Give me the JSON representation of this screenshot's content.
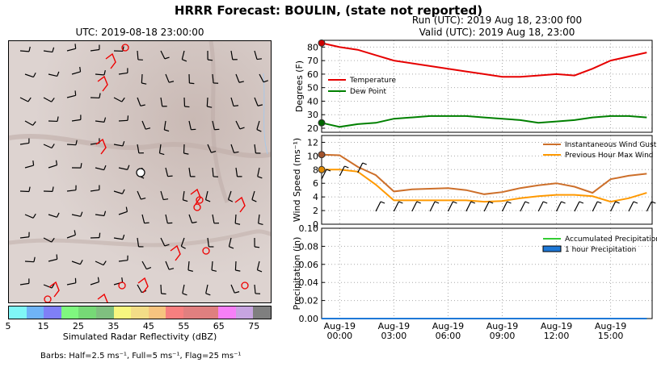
{
  "title": "HRRR Forecast: BOULIN, (state not reported)",
  "run_label": "Run (UTC): 2019 Aug 18, 23:00 f00",
  "valid_label": "Valid (UTC): 2019 Aug 18, 23:00",
  "map": {
    "title": "UTC: 2019-08-18 23:00:00",
    "colorbar_label": "Simulated Radar Reflectivity (dBZ)",
    "colorbar_ticks": [
      "5",
      "15",
      "25",
      "35",
      "45",
      "55",
      "65",
      "75"
    ],
    "colorbar_colors": [
      "#7ff7f7",
      "#6fb4f7",
      "#7f7ff7",
      "#7ff77f",
      "#76d976",
      "#7fbf7f",
      "#f7f77f",
      "#f3dd87",
      "#f7c47f",
      "#f77f7f",
      "#e07f7f",
      "#df7f7f",
      "#f77ff7",
      "#c7a4e0",
      "#7f7f7f"
    ],
    "barb_note": "Barbs: Half=2.5 ms⁻¹, Full=5 ms⁻¹, Flag=25 ms⁻¹"
  },
  "chart_data": [
    {
      "type": "line",
      "ylabel": "Degrees (F)",
      "ylim": [
        17,
        85
      ],
      "yticks": [
        20,
        30,
        40,
        50,
        60,
        70,
        80
      ],
      "x_hours": [
        0,
        1,
        2,
        3,
        4,
        5,
        6,
        7,
        8,
        9,
        10,
        11,
        12,
        13,
        14,
        15,
        16,
        17,
        18
      ],
      "series": [
        {
          "name": "Temperature",
          "color": "#e60000",
          "values": [
            83,
            80,
            78,
            74,
            70,
            68,
            66,
            64,
            62,
            60,
            58,
            58,
            59,
            60,
            59,
            64,
            70,
            73,
            76
          ]
        },
        {
          "name": "Dew Point",
          "color": "#008000",
          "values": [
            24,
            21,
            23,
            24,
            27,
            28,
            29,
            29,
            29,
            28,
            27,
            26,
            24,
            25,
            26,
            28,
            29,
            29,
            28
          ]
        }
      ],
      "legend": "center-left"
    },
    {
      "type": "line",
      "ylabel": "Wind Speed (ms⁻¹)",
      "ylim": [
        0,
        13
      ],
      "yticks": [
        0,
        2,
        4,
        6,
        8,
        10,
        12
      ],
      "x_hours": [
        0,
        1,
        2,
        3,
        4,
        5,
        6,
        7,
        8,
        9,
        10,
        11,
        12,
        13,
        14,
        15,
        16,
        17,
        18
      ],
      "series": [
        {
          "name": "Instantaneous Wind Gust",
          "color": "#cd6f2a",
          "values": [
            10.2,
            10.1,
            8.4,
            7.2,
            4.8,
            5.1,
            5.2,
            5.3,
            5.0,
            4.4,
            4.7,
            5.3,
            5.7,
            6.0,
            5.5,
            4.6,
            6.6,
            7.1,
            7.4
          ]
        },
        {
          "name": "Previous Hour Max Wind",
          "color": "#ff9900",
          "values": [
            8.0,
            8.0,
            7.7,
            5.8,
            3.5,
            3.5,
            3.5,
            3.5,
            3.5,
            3.3,
            3.4,
            3.8,
            4.1,
            4.3,
            4.3,
            4.1,
            3.3,
            3.8,
            4.6
          ]
        }
      ],
      "legend": "top-right"
    },
    {
      "type": "line",
      "ylabel": "Precipitation (in)",
      "ylim": [
        0,
        0.1
      ],
      "yticks": [
        "0.00",
        "0.02",
        "0.04",
        "0.06",
        "0.08",
        "0.10"
      ],
      "x_hours": [
        0,
        1,
        2,
        3,
        4,
        5,
        6,
        7,
        8,
        9,
        10,
        11,
        12,
        13,
        14,
        15,
        16,
        17,
        18
      ],
      "series": [
        {
          "name": "Accumulated Precipitation",
          "color": "#33cc33",
          "values": [
            0,
            0,
            0,
            0,
            0,
            0,
            0,
            0,
            0,
            0,
            0,
            0,
            0,
            0,
            0,
            0,
            0,
            0,
            0
          ]
        },
        {
          "name": "1 hour Precipitation",
          "color": "#1e78d7",
          "values": [
            0,
            0,
            0,
            0,
            0,
            0,
            0,
            0,
            0,
            0,
            0,
            0,
            0,
            0,
            0,
            0,
            0,
            0,
            0
          ]
        }
      ],
      "legend": "top-right",
      "xtick_labels": [
        [
          "Aug-19",
          "00:00"
        ],
        [
          "Aug-19",
          "03:00"
        ],
        [
          "Aug-19",
          "06:00"
        ],
        [
          "Aug-19",
          "09:00"
        ],
        [
          "Aug-19",
          "12:00"
        ],
        [
          "Aug-19",
          "15:00"
        ]
      ],
      "xtick_hours": [
        1,
        4,
        7,
        10,
        13,
        16
      ]
    }
  ]
}
